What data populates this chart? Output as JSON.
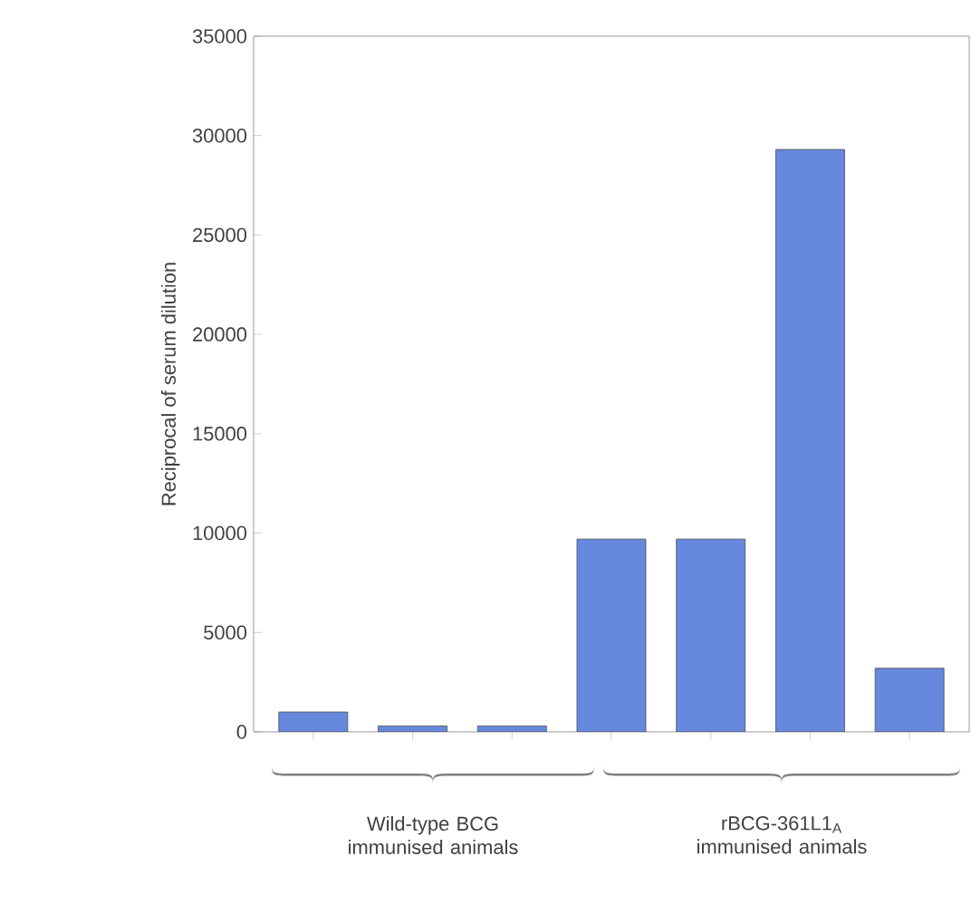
{
  "chart_data": {
    "type": "bar",
    "categories": [
      null,
      null,
      null,
      null,
      null,
      null,
      null
    ],
    "values": [
      1000,
      300,
      300,
      9700,
      9700,
      29300,
      3200
    ],
    "color": "#6688dd",
    "ylabel": "Reciprocal of serum dilution",
    "ylim": [
      0,
      35000
    ],
    "yticks": [
      0,
      5000,
      10000,
      15000,
      20000,
      25000,
      30000,
      35000
    ],
    "annotations": [
      "Wild-type BCG immunised animals",
      "rBCG-361L1$_{A}$ immunised animals"
    ],
    "grid": false
  }
}
